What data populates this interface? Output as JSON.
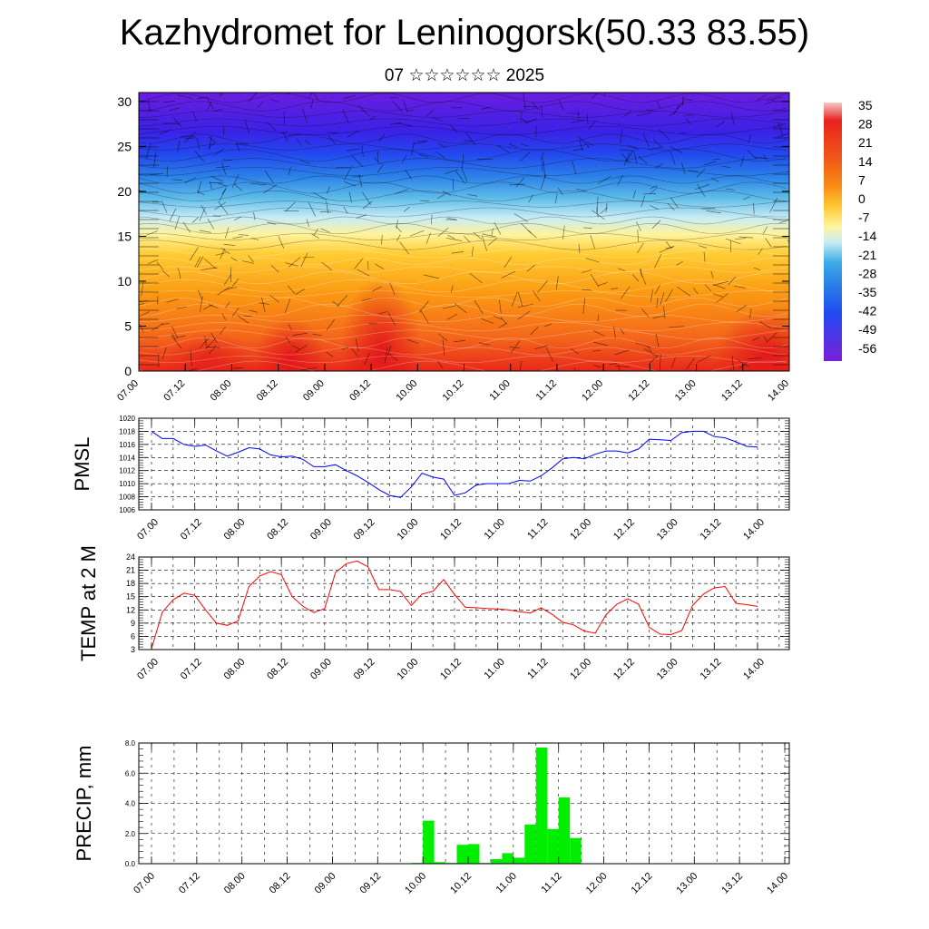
{
  "header": {
    "title": "Kazhydromet for Leninogorsk(50.33 83.55)",
    "subtitle": "07 ☆☆☆☆☆☆ 2025"
  },
  "chart_data": [
    {
      "type": "heatmap",
      "panel": "vertical-cross-section",
      "title": "",
      "xlabel": "",
      "ylabel": "",
      "ylim": [
        0,
        31
      ],
      "yticks": [
        0,
        5,
        10,
        15,
        20,
        25,
        30
      ],
      "xticks": [
        "07.00",
        "07.12",
        "08.00",
        "08.12",
        "09.00",
        "09.12",
        "10.00",
        "10.12",
        "11.00",
        "11.12",
        "12.00",
        "12.12",
        "13.00",
        "13.12",
        "14.00"
      ],
      "colorbar": {
        "labels": [
          "35",
          "28",
          "21",
          "14",
          "7",
          "0",
          "-7",
          "-14",
          "-21",
          "-28",
          "-35",
          "-42",
          "-49",
          "-56"
        ],
        "colors": [
          "#f4b0b0",
          "#e8221e",
          "#f04a1a",
          "#f77b15",
          "#fb9a12",
          "#ffd23c",
          "#fff59b",
          "#b0e0f5",
          "#36a8e6",
          "#2878e8",
          "#2248f0",
          "#3b1ce8",
          "#5a18e0",
          "#7a20d8"
        ]
      },
      "overlay": "wind streamlines / barbs"
    },
    {
      "type": "line",
      "panel": "pmsl",
      "ylabel": "PMSL",
      "ylim": [
        1006,
        1020
      ],
      "yticks": [
        1006,
        1008,
        1010,
        1012,
        1014,
        1016,
        1018,
        1020
      ],
      "color": "#0000ff",
      "xticks": [
        "07.00",
        "07.12",
        "08.00",
        "08.12",
        "09.00",
        "09.12",
        "10.00",
        "10.12",
        "11.00",
        "11.12",
        "12.00",
        "12.12",
        "13.00",
        "13.12",
        "14.00"
      ],
      "x_hours": [
        0,
        3,
        6,
        9,
        12,
        15,
        18,
        21,
        24,
        27,
        30,
        33,
        36,
        39,
        42,
        45,
        48,
        51,
        54,
        57,
        60,
        63,
        66,
        69,
        72,
        75,
        78,
        81,
        84,
        87,
        90,
        93,
        96,
        99,
        102,
        105,
        108,
        111,
        114,
        117,
        120,
        123,
        126,
        129,
        132,
        135,
        138,
        141,
        144,
        147,
        150,
        153,
        156,
        159,
        162,
        165,
        168
      ],
      "values": [
        1018,
        1016.9,
        1016.9,
        1016,
        1015.7,
        1015.9,
        1015,
        1014.2,
        1014.8,
        1015.5,
        1015.3,
        1014.4,
        1014.1,
        1014.2,
        1013.7,
        1012.6,
        1012.6,
        1012.9,
        1012,
        1011.2,
        1010.2,
        1009.1,
        1008.2,
        1007.9,
        1009.5,
        1011.6,
        1011,
        1010.7,
        1008.2,
        1008.6,
        1009.8,
        1010,
        1010,
        1010,
        1010.5,
        1010.4,
        1011.2,
        1012.4,
        1013.8,
        1014,
        1013.8,
        1014.5,
        1015,
        1015,
        1014.7,
        1015.3,
        1016.8,
        1016.7,
        1016.6,
        1017.8,
        1018,
        1018,
        1017.2,
        1017,
        1016.4,
        1015.7,
        1015.6
      ]
    },
    {
      "type": "line",
      "panel": "temp2m",
      "ylabel": "TEMP at 2 M",
      "ylim": [
        3,
        24
      ],
      "yticks": [
        3,
        6,
        9,
        12,
        15,
        18,
        21,
        24
      ],
      "color": "#ff0000",
      "xticks": [
        "07.00",
        "07.12",
        "08.00",
        "08.12",
        "09.00",
        "09.12",
        "10.00",
        "10.12",
        "11.00",
        "11.12",
        "12.00",
        "12.12",
        "13.00",
        "13.12",
        "14.00"
      ],
      "x_hours": [
        0,
        3,
        6,
        9,
        12,
        15,
        18,
        21,
        24,
        27,
        30,
        33,
        36,
        39,
        42,
        45,
        48,
        51,
        54,
        57,
        60,
        63,
        66,
        69,
        72,
        75,
        78,
        81,
        84,
        87,
        90,
        93,
        96,
        99,
        102,
        105,
        108,
        111,
        114,
        117,
        120,
        123,
        126,
        129,
        132,
        135,
        138,
        141,
        144,
        147,
        150,
        153,
        156,
        159,
        162,
        165,
        168
      ],
      "values": [
        3.2,
        11.5,
        14.3,
        15.8,
        15.3,
        12,
        9,
        8.5,
        9.5,
        17.3,
        19.7,
        20.7,
        20,
        15,
        12.8,
        11.4,
        12.3,
        20.5,
        22.5,
        23.1,
        21.8,
        16.6,
        16.6,
        16.2,
        13,
        15.6,
        16.2,
        18.9,
        15.5,
        12.6,
        12.5,
        12.3,
        12.2,
        12,
        11.6,
        11.3,
        12.5,
        11,
        9.2,
        8.6,
        7.2,
        6.7,
        10.9,
        13.3,
        14.5,
        13.3,
        8,
        6.5,
        6.4,
        7.3,
        13,
        15.6,
        17,
        17.3,
        13.5,
        13.2,
        12.8
      ]
    },
    {
      "type": "bar",
      "panel": "precip",
      "ylabel": "PRECIP, mm",
      "ylim": [
        0,
        8
      ],
      "ytick_labels": [
        "0.0",
        "2.0",
        "4.0",
        "6.0",
        "8.0"
      ],
      "yticks": [
        0,
        2,
        4,
        6,
        8
      ],
      "color": "#00ee00",
      "xticks": [
        "07.00",
        "07.12",
        "08.00",
        "08.12",
        "09.00",
        "09.12",
        "10.00",
        "10.12",
        "11.00",
        "11.12",
        "12.00",
        "12.12",
        "13.00",
        "13.12",
        "14.00"
      ],
      "bins_start_hours": [
        69,
        72,
        75,
        78,
        81,
        84,
        87,
        90,
        93,
        96,
        99,
        102,
        105,
        108,
        111
      ],
      "values": [
        0.05,
        2.85,
        0.1,
        0.05,
        1.25,
        1.3,
        0.05,
        0.3,
        0.7,
        0.4,
        2.6,
        7.7,
        2.3,
        4.4,
        1.7
      ]
    }
  ]
}
